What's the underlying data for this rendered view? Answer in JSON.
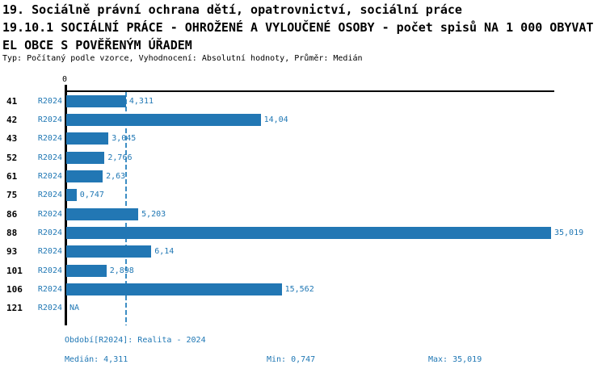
{
  "title": {
    "line1": "19. Sociálně právní ochrana dětí, opatrovnictví, sociální práce",
    "line2": "19.10.1 SOCIÁLNÍ PRÁCE - OHROŽENÉ A VYLOUČENÉ OSOBY - počet spisů NA 1 000 OBYVAT",
    "line3": "EL OBCE S POVĚŘENÝM ÚŘADEM",
    "subtitle": "Typ: Počítaný podle vzorce, Vyhodnocení: Absolutní hodnoty, Průměr: Medián"
  },
  "chart_data": {
    "type": "bar",
    "orientation": "horizontal",
    "axis_zero_label": "0",
    "series_label": "R2024",
    "categories": [
      "41",
      "42",
      "43",
      "52",
      "61",
      "75",
      "86",
      "88",
      "93",
      "101",
      "106",
      "121"
    ],
    "values": [
      4.311,
      14.04,
      3.045,
      2.766,
      2.63,
      0.747,
      5.203,
      35.019,
      6.14,
      2.898,
      15.562,
      null
    ],
    "value_labels": [
      "4,311",
      "14,04",
      "3,045",
      "2,766",
      "2,63",
      "0,747",
      "5,203",
      "35,019",
      "6,14",
      "2,898",
      "15,562",
      "NA"
    ],
    "median": 4.311,
    "xlim": [
      0,
      35.3
    ],
    "grid": false,
    "bar_color": "#2277b4",
    "median_line_color": "#3d8ec4",
    "accent_text_color": "#1f77b4"
  },
  "footer": {
    "period": "Období[R2024]: Realita - 2024",
    "median": "Medián: 4,311",
    "min": "Min: 0,747",
    "max": "Max: 35,019"
  }
}
